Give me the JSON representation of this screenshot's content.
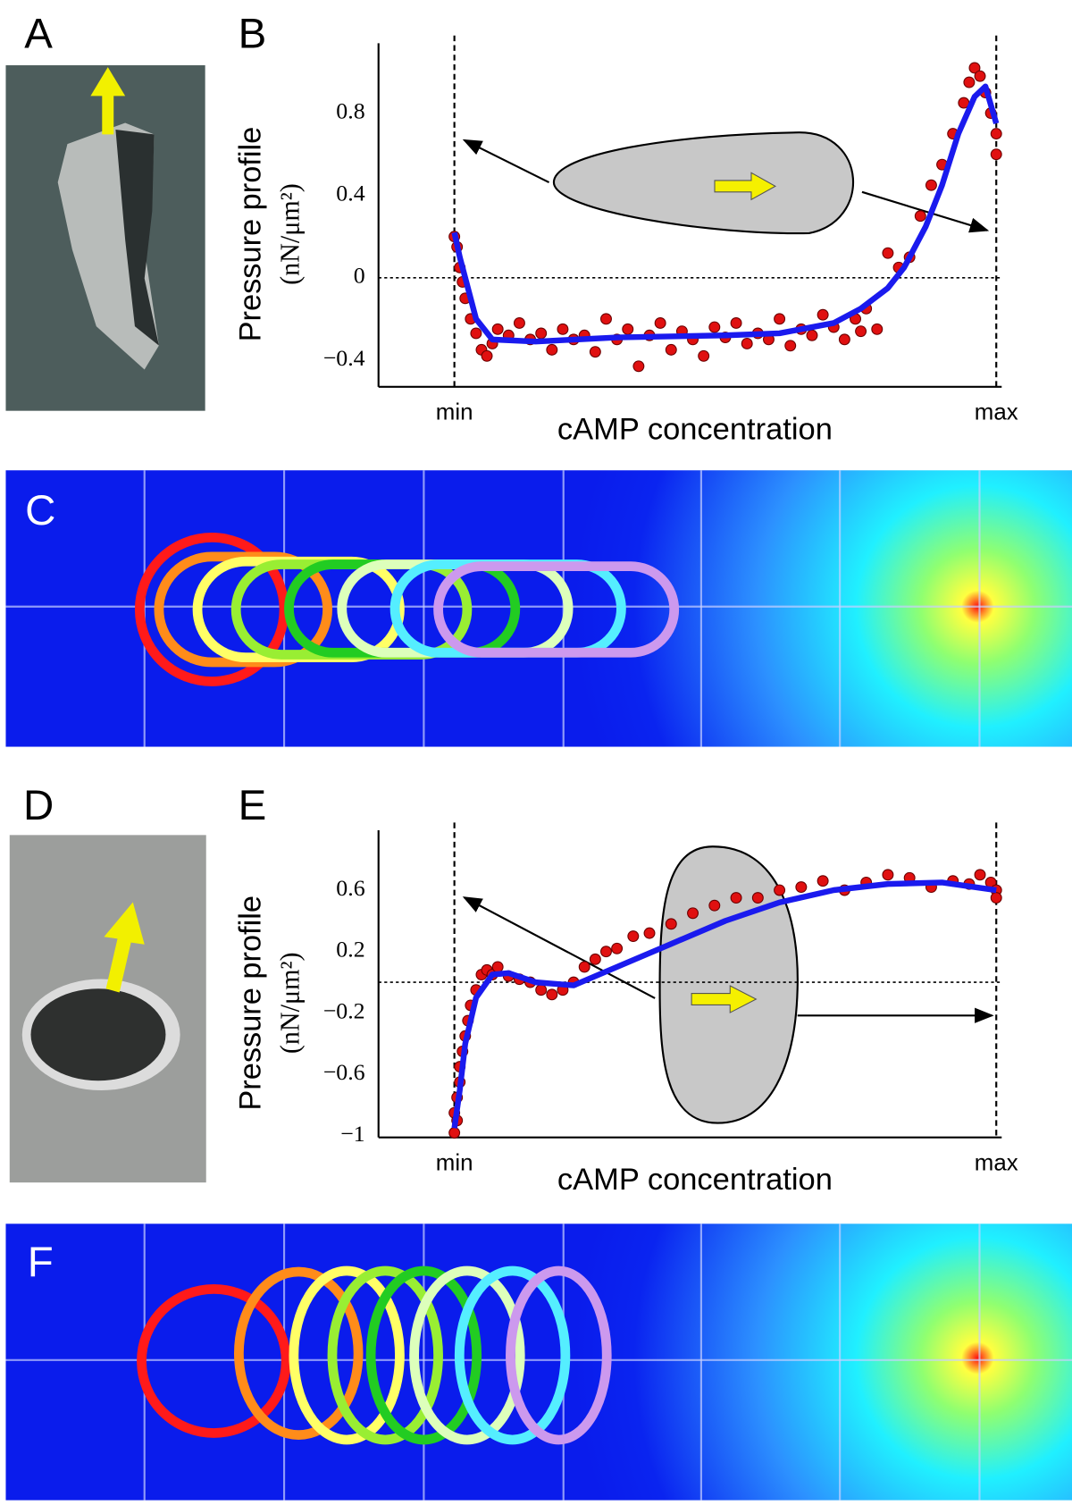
{
  "panel_labels": [
    "A",
    "B",
    "C",
    "D",
    "E",
    "F"
  ],
  "chart_data": [
    {
      "type": "scatter",
      "xlabel": "cAMP concentration",
      "ylabel": [
        "Pressure profile",
        "(nN/μm²)"
      ],
      "xlim": [
        -0.14,
        1.01
      ],
      "ylim": [
        -0.53,
        1.14
      ],
      "xticks": [
        {
          "value": 0,
          "label": "min"
        },
        {
          "value": 1,
          "label": "max"
        }
      ],
      "yticks": [
        {
          "value": -0.4,
          "label": "−0.4"
        },
        0,
        0.4,
        0.8
      ],
      "xgrid": true,
      "hline": 0,
      "series": [
        {
          "mark": "point",
          "color": "#e01010",
          "x": [
            0.0,
            0.005,
            0.01,
            0.015,
            0.02,
            0.03,
            0.04,
            0.05,
            0.06,
            0.07,
            0.08,
            0.1,
            0.12,
            0.14,
            0.16,
            0.18,
            0.2,
            0.22,
            0.24,
            0.26,
            0.28,
            0.3,
            0.32,
            0.34,
            0.36,
            0.38,
            0.4,
            0.42,
            0.44,
            0.46,
            0.48,
            0.5,
            0.52,
            0.54,
            0.56,
            0.58,
            0.6,
            0.62,
            0.64,
            0.66,
            0.68,
            0.7,
            0.72,
            0.74,
            0.75,
            0.76,
            0.78,
            0.8,
            0.82,
            0.84,
            0.86,
            0.88,
            0.9,
            0.92,
            0.94,
            0.95,
            0.96,
            0.97,
            0.98,
            0.99,
            1.0,
            1.0
          ],
          "values": [
            0.2,
            0.15,
            0.05,
            -0.02,
            -0.1,
            -0.2,
            -0.27,
            -0.35,
            -0.38,
            -0.32,
            -0.25,
            -0.28,
            -0.22,
            -0.3,
            -0.27,
            -0.35,
            -0.25,
            -0.3,
            -0.28,
            -0.36,
            -0.2,
            -0.3,
            -0.25,
            -0.43,
            -0.28,
            -0.22,
            -0.35,
            -0.26,
            -0.3,
            -0.38,
            -0.24,
            -0.29,
            -0.22,
            -0.32,
            -0.27,
            -0.3,
            -0.2,
            -0.33,
            -0.25,
            -0.28,
            -0.18,
            -0.24,
            -0.3,
            -0.2,
            -0.26,
            -0.15,
            -0.25,
            0.12,
            0.05,
            0.1,
            0.3,
            0.45,
            0.55,
            0.7,
            0.85,
            0.95,
            1.02,
            0.98,
            0.9,
            0.8,
            0.7,
            0.6
          ]
        },
        {
          "mark": "line",
          "color": "#1a1aee",
          "x": [
            0,
            0.01,
            0.02,
            0.04,
            0.07,
            0.15,
            0.3,
            0.5,
            0.6,
            0.7,
            0.75,
            0.8,
            0.83,
            0.87,
            0.9,
            0.93,
            0.96,
            0.98,
            1.0
          ],
          "values": [
            0.22,
            0.1,
            0,
            -0.2,
            -0.3,
            -0.31,
            -0.29,
            -0.28,
            -0.27,
            -0.22,
            -0.15,
            -0.05,
            0.05,
            0.25,
            0.45,
            0.7,
            0.88,
            0.93,
            0.75
          ]
        }
      ]
    },
    {
      "type": "scatter",
      "xlabel": "cAMP concentration",
      "ylabel": [
        "Pressure profile",
        "(nN/μm²)"
      ],
      "xlim": [
        -0.14,
        1.01
      ],
      "ylim": [
        -1.01,
        0.99
      ],
      "xticks": [
        {
          "value": 0,
          "label": "min"
        },
        {
          "value": 1,
          "label": "max"
        }
      ],
      "yticks": [
        {
          "value": -1,
          "label": "−1"
        },
        {
          "value": -0.6,
          "label": "−0.6"
        },
        {
          "value": -0.2,
          "label": "−0.2"
        },
        0.2,
        0.6
      ],
      "xgrid": true,
      "hline": 0,
      "series": [
        {
          "mark": "point",
          "color": "#e01010",
          "x": [
            0,
            0,
            0.005,
            0.005,
            0.01,
            0.01,
            0.015,
            0.02,
            0.025,
            0.03,
            0.04,
            0.05,
            0.06,
            0.07,
            0.08,
            0.1,
            0.12,
            0.14,
            0.16,
            0.18,
            0.2,
            0.22,
            0.24,
            0.26,
            0.28,
            0.3,
            0.33,
            0.36,
            0.4,
            0.44,
            0.48,
            0.52,
            0.56,
            0.6,
            0.64,
            0.68,
            0.72,
            0.76,
            0.8,
            0.84,
            0.88,
            0.92,
            0.95,
            0.97,
            0.99,
            1.0,
            1.0
          ],
          "values": [
            -0.98,
            -0.85,
            -0.9,
            -0.75,
            -0.65,
            -0.55,
            -0.45,
            -0.35,
            -0.25,
            -0.15,
            -0.05,
            0.05,
            0.08,
            0.05,
            0.1,
            0.04,
            0.02,
            0.0,
            -0.05,
            -0.08,
            -0.05,
            0.0,
            0.1,
            0.15,
            0.2,
            0.22,
            0.3,
            0.32,
            0.38,
            0.45,
            0.5,
            0.55,
            0.55,
            0.6,
            0.62,
            0.66,
            0.6,
            0.65,
            0.7,
            0.68,
            0.62,
            0.66,
            0.64,
            0.7,
            0.65,
            0.6,
            0.55
          ]
        },
        {
          "mark": "line",
          "color": "#1a1aee",
          "x": [
            0,
            0.01,
            0.02,
            0.04,
            0.07,
            0.1,
            0.15,
            0.22,
            0.3,
            0.4,
            0.5,
            0.6,
            0.7,
            0.8,
            0.9,
            1.0
          ],
          "values": [
            -0.95,
            -0.7,
            -0.4,
            -0.1,
            0.05,
            0.06,
            0.0,
            -0.02,
            0.1,
            0.25,
            0.4,
            0.52,
            0.6,
            0.64,
            0.65,
            0.6
          ]
        }
      ]
    }
  ]
}
